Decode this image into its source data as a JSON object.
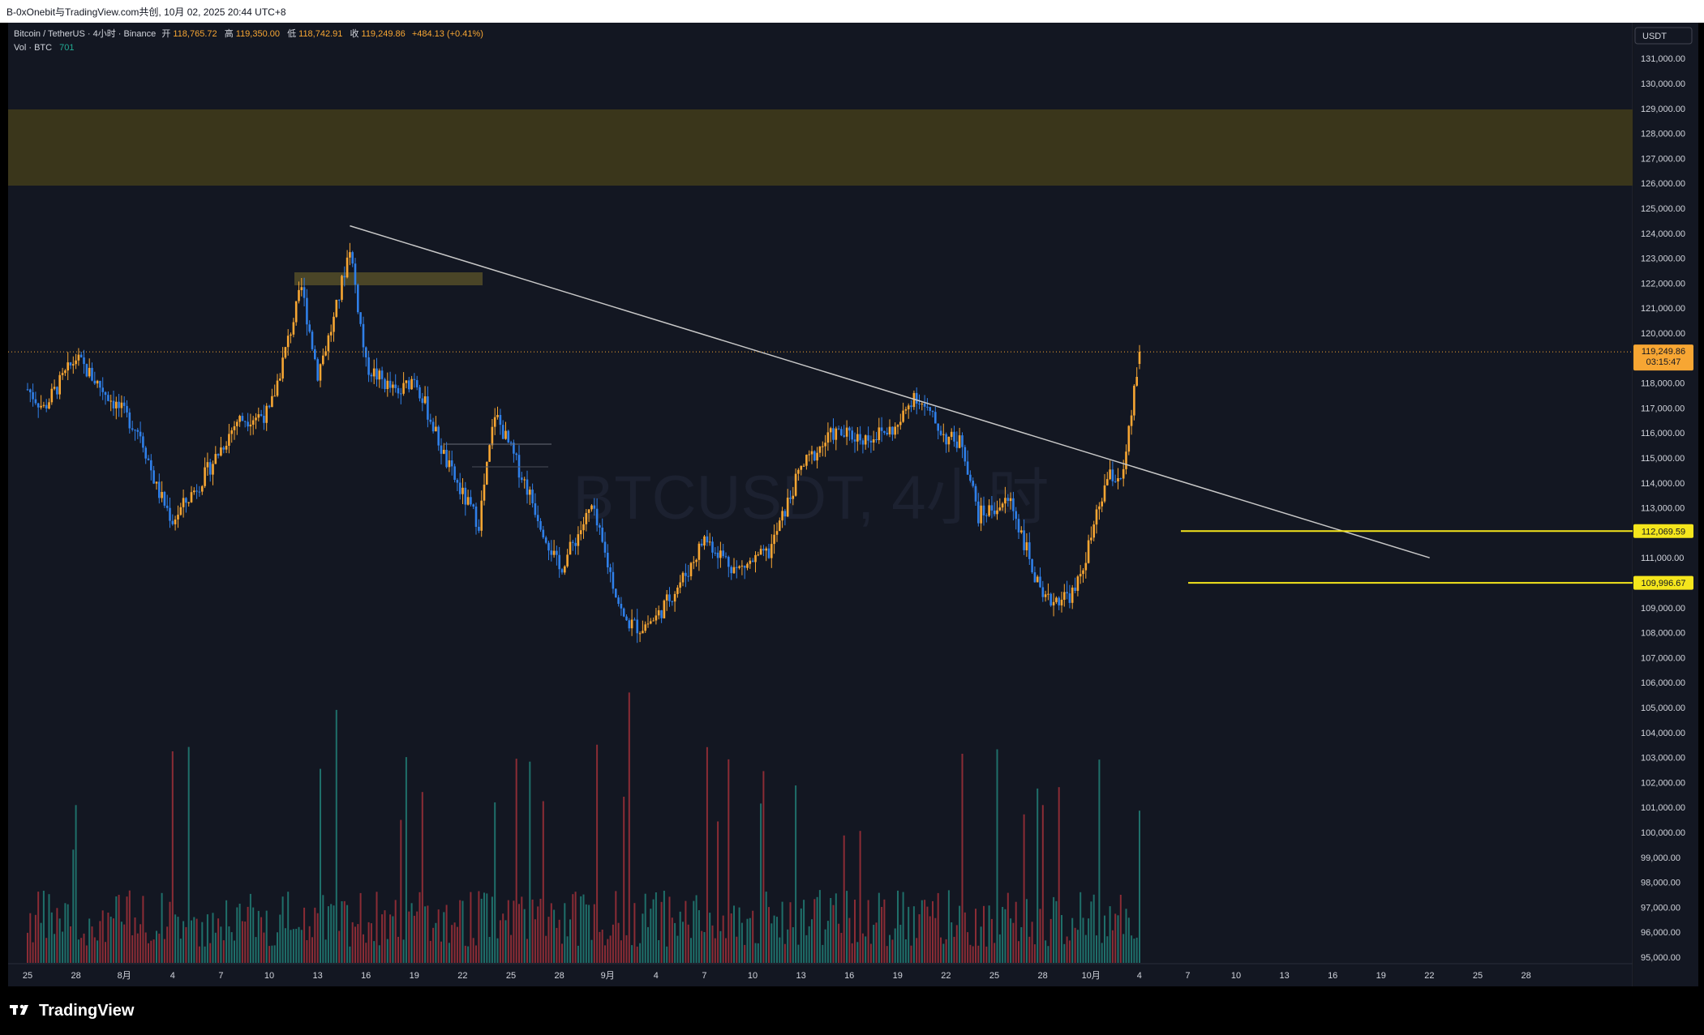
{
  "header": {
    "share_text": "B-0xOnebit与TradingView.com共创, 10月 02, 2025 20:44 UTC+8"
  },
  "legend": {
    "symbol": "Bitcoin / TetherUS · 4小时 · Binance",
    "open_label": "开",
    "open_value": "118,765.72",
    "high_label": "高",
    "high_value": "119,350.00",
    "low_label": "低",
    "low_value": "118,742.91",
    "close_label": "收",
    "close_value": "119,249.86",
    "change_value": "+484.13 (+0.41%)",
    "vol_label": "Vol · BTC",
    "vol_value": "701"
  },
  "watermark": "BTCUSDT, 4小时",
  "price_axis": {
    "currency": "USDT",
    "current_price": "119,249.86",
    "countdown": "03:15:47",
    "level_1": "112,069.59",
    "level_2": "109,996.67"
  },
  "footer": {
    "brand": "TradingView"
  },
  "colors": {
    "background": "#131722",
    "up": "#f7a633",
    "down": "#2f7fe8",
    "volume_up": "#1f6f6a",
    "volume_down": "#8b2c35",
    "level_line": "#f5e61c",
    "zone": "#3a361b",
    "current_price": "#f7a633"
  },
  "chart_data": {
    "type": "candlestick",
    "title": "",
    "symbol": "BTCUSDT",
    "timeframe": "4小时",
    "exchange": "Binance",
    "ylim": [
      95000,
      131800
    ],
    "y_ticks": [
      131000,
      130000,
      129000,
      128000,
      127000,
      126000,
      125000,
      124000,
      123000,
      122000,
      121000,
      120000,
      119000,
      118000,
      117000,
      116000,
      115000,
      114000,
      113000,
      112000,
      111000,
      110000,
      109000,
      108000,
      107000,
      106000,
      105000,
      104000,
      103000,
      102000,
      101000,
      100000,
      99000,
      98000,
      97000,
      96000,
      95000
    ],
    "x_ticks": [
      "25",
      "28",
      "8月",
      "4",
      "7",
      "10",
      "13",
      "16",
      "19",
      "22",
      "25",
      "28",
      "9月",
      "4",
      "7",
      "10",
      "13",
      "16",
      "19",
      "22",
      "25",
      "28",
      "10月",
      "4",
      "7",
      "10",
      "13",
      "16",
      "19",
      "22",
      "25",
      "28"
    ],
    "price_path": [
      [
        "2025-07-24",
        118500
      ],
      [
        "2025-07-26",
        117000
      ],
      [
        "2025-07-28",
        119000
      ],
      [
        "2025-07-30",
        117500
      ],
      [
        "2025-08-01",
        116000
      ],
      [
        "2025-08-02",
        113800
      ],
      [
        "2025-08-03",
        112500
      ],
      [
        "2025-08-05",
        114300
      ],
      [
        "2025-08-07",
        116500
      ],
      [
        "2025-08-09",
        116800
      ],
      [
        "2025-08-11",
        121800
      ],
      [
        "2025-08-12",
        118400
      ],
      [
        "2025-08-13",
        120500
      ],
      [
        "2025-08-14",
        123500
      ],
      [
        "2025-08-15",
        118700
      ],
      [
        "2025-08-17",
        117500
      ],
      [
        "2025-08-18",
        118300
      ],
      [
        "2025-08-20",
        114800
      ],
      [
        "2025-08-21",
        113500
      ],
      [
        "2025-08-22",
        112400
      ],
      [
        "2025-08-23",
        116800
      ],
      [
        "2025-08-25",
        113800
      ],
      [
        "2025-08-27",
        110500
      ],
      [
        "2025-08-29",
        113000
      ],
      [
        "2025-08-31",
        108500
      ],
      [
        "2025-09-01",
        108200
      ],
      [
        "2025-09-02",
        108600
      ],
      [
        "2025-09-04",
        110500
      ],
      [
        "2025-09-05",
        111800
      ],
      [
        "2025-09-07",
        110500
      ],
      [
        "2025-09-09",
        111200
      ],
      [
        "2025-09-11",
        114600
      ],
      [
        "2025-09-13",
        116000
      ],
      [
        "2025-09-15",
        115800
      ],
      [
        "2025-09-17",
        116200
      ],
      [
        "2025-09-18",
        117600
      ],
      [
        "2025-09-20",
        115800
      ],
      [
        "2025-09-21",
        115600
      ],
      [
        "2025-09-22",
        112700
      ],
      [
        "2025-09-24",
        113300
      ],
      [
        "2025-09-25",
        111300
      ],
      [
        "2025-09-26",
        109200
      ],
      [
        "2025-09-27",
        109400
      ],
      [
        "2025-09-28",
        109600
      ],
      [
        "2025-09-29",
        111800
      ],
      [
        "2025-09-30",
        114200
      ],
      [
        "2025-10-01",
        114300
      ],
      [
        "2025-10-02",
        119250
      ]
    ],
    "last_candle": {
      "open": 118765.72,
      "high": 119350.0,
      "low": 118742.91,
      "close": 119249.86,
      "volume": 701
    },
    "trendline": {
      "from": [
        "2025-08-14",
        124300
      ],
      "to": [
        "2025-10-20",
        111000
      ]
    },
    "horizontal_levels": [
      112069.59,
      109996.67
    ],
    "supply_zones": [
      {
        "from": "2025-07-24",
        "to": "2025-10-28",
        "y": [
          126000,
          129000
        ]
      },
      {
        "from": "2025-08-11",
        "to": "2025-08-22",
        "y": [
          122000,
          122500
        ]
      }
    ],
    "grid": false,
    "legend": "top-left"
  }
}
